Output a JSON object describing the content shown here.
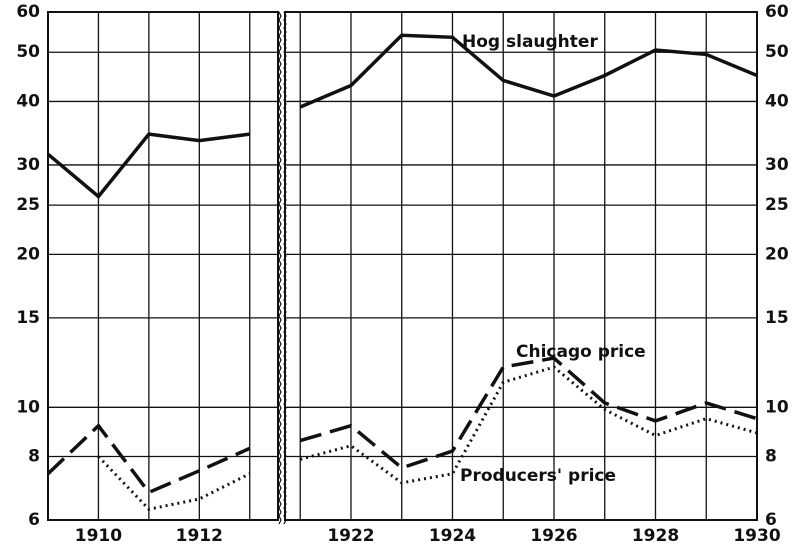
{
  "chart_data": [
    {
      "type": "line",
      "scale": "log",
      "x": [
        1909,
        1910,
        1911,
        1912,
        1913
      ],
      "xlim": [
        1909,
        1913.56
      ],
      "xticks": [
        1910,
        1912
      ],
      "ylim": [
        6,
        60
      ],
      "yticks": [
        6,
        8,
        10,
        15,
        20,
        25,
        30,
        40,
        50,
        60
      ],
      "grid": true,
      "series": [
        {
          "color": "#111111",
          "dash": "solid",
          "values": [
            31.5,
            26,
            34.5,
            33.5,
            34.5
          ]
        },
        {
          "color": "#111111",
          "dash": "dashed",
          "values": [
            7.4,
            9.2,
            6.8,
            7.5,
            8.3
          ]
        },
        {
          "color": "#111111",
          "dash": "dotted",
          "values": [
            null,
            8.0,
            6.3,
            6.6,
            7.4
          ]
        }
      ]
    },
    {
      "type": "line",
      "scale": "log",
      "x": [
        1921,
        1922,
        1923,
        1924,
        1925,
        1926,
        1927,
        1928,
        1929,
        1930
      ],
      "xlim": [
        1920.7,
        1930
      ],
      "xticks": [
        1922,
        1924,
        1926,
        1928,
        1930
      ],
      "ylim": [
        6,
        60
      ],
      "yticks": [
        6,
        8,
        10,
        15,
        20,
        25,
        30,
        40,
        50,
        60
      ],
      "grid": true,
      "series": [
        {
          "name": "Hog slaughter",
          "color": "#111111",
          "dash": "solid",
          "values": [
            39,
            43,
            54,
            53.5,
            44,
            41,
            45,
            50.5,
            49.5,
            45
          ]
        },
        {
          "name": "Chicago price",
          "color": "#111111",
          "dash": "dashed",
          "values": [
            8.6,
            9.2,
            7.6,
            8.2,
            12,
            12.5,
            10.2,
            9.4,
            10.2,
            9.5
          ]
        },
        {
          "name": "Producers' price",
          "color": "#111111",
          "dash": "dotted",
          "values": [
            7.9,
            8.4,
            7.1,
            7.4,
            11.2,
            12,
            9.9,
            8.8,
            9.5,
            8.9
          ]
        }
      ]
    }
  ]
}
